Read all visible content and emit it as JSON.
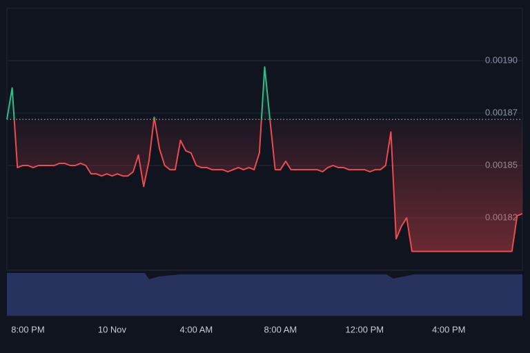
{
  "chart_data": {
    "type": "line",
    "values": [
      0.001872,
      0.001887,
      0.001849,
      0.00185,
      0.00185,
      0.001849,
      0.00185,
      0.00185,
      0.00185,
      0.00185,
      0.001851,
      0.001851,
      0.00185,
      0.00185,
      0.001851,
      0.00185,
      0.001846,
      0.001846,
      0.001845,
      0.001846,
      0.001845,
      0.001846,
      0.001845,
      0.001845,
      0.001847,
      0.001855,
      0.00184,
      0.001852,
      0.001873,
      0.001858,
      0.00185,
      0.001848,
      0.001848,
      0.001862,
      0.001857,
      0.001856,
      0.00185,
      0.001849,
      0.001849,
      0.001848,
      0.001848,
      0.001848,
      0.001847,
      0.001848,
      0.001849,
      0.001848,
      0.001849,
      0.001848,
      0.001856,
      0.001897,
      0.001872,
      0.001848,
      0.001848,
      0.001852,
      0.001848,
      0.001848,
      0.001848,
      0.001848,
      0.001848,
      0.001848,
      0.001847,
      0.001849,
      0.00185,
      0.001849,
      0.001849,
      0.001848,
      0.001848,
      0.001848,
      0.001848,
      0.001847,
      0.001848,
      0.001848,
      0.00185,
      0.001866,
      0.001815,
      0.001821,
      0.001825,
      0.001809,
      0.001809,
      0.001809,
      0.001809,
      0.001809,
      0.001809,
      0.001809,
      0.001809,
      0.001809,
      0.001809,
      0.001809,
      0.001809,
      0.001809,
      0.001809,
      0.001809,
      0.001809,
      0.001809,
      0.001809,
      0.001809,
      0.001809,
      0.001826,
      0.001827
    ],
    "baseline": 0.001872,
    "up_color": "#2ebd85",
    "down_color": "#ef4a4f",
    "xlim": [
      0,
      98
    ],
    "xticks": [
      {
        "value": 4,
        "label": "8:00 PM"
      },
      {
        "value": 20,
        "label": "10 Nov"
      },
      {
        "value": 36,
        "label": "4:00 AM"
      },
      {
        "value": 52,
        "label": "8:00 AM"
      },
      {
        "value": 68,
        "label": "12:00 PM"
      },
      {
        "value": 84,
        "label": "4:00 PM"
      }
    ],
    "ylim": [
      0.0018,
      0.001925
    ],
    "yticks": [
      {
        "value": 0.0019,
        "label": "0.00190"
      },
      {
        "value": 0.001875,
        "label": "0.00187"
      },
      {
        "value": 0.00185,
        "label": "0.00185"
      },
      {
        "value": 0.001825,
        "label": "0.00182"
      }
    ],
    "grid": true
  }
}
